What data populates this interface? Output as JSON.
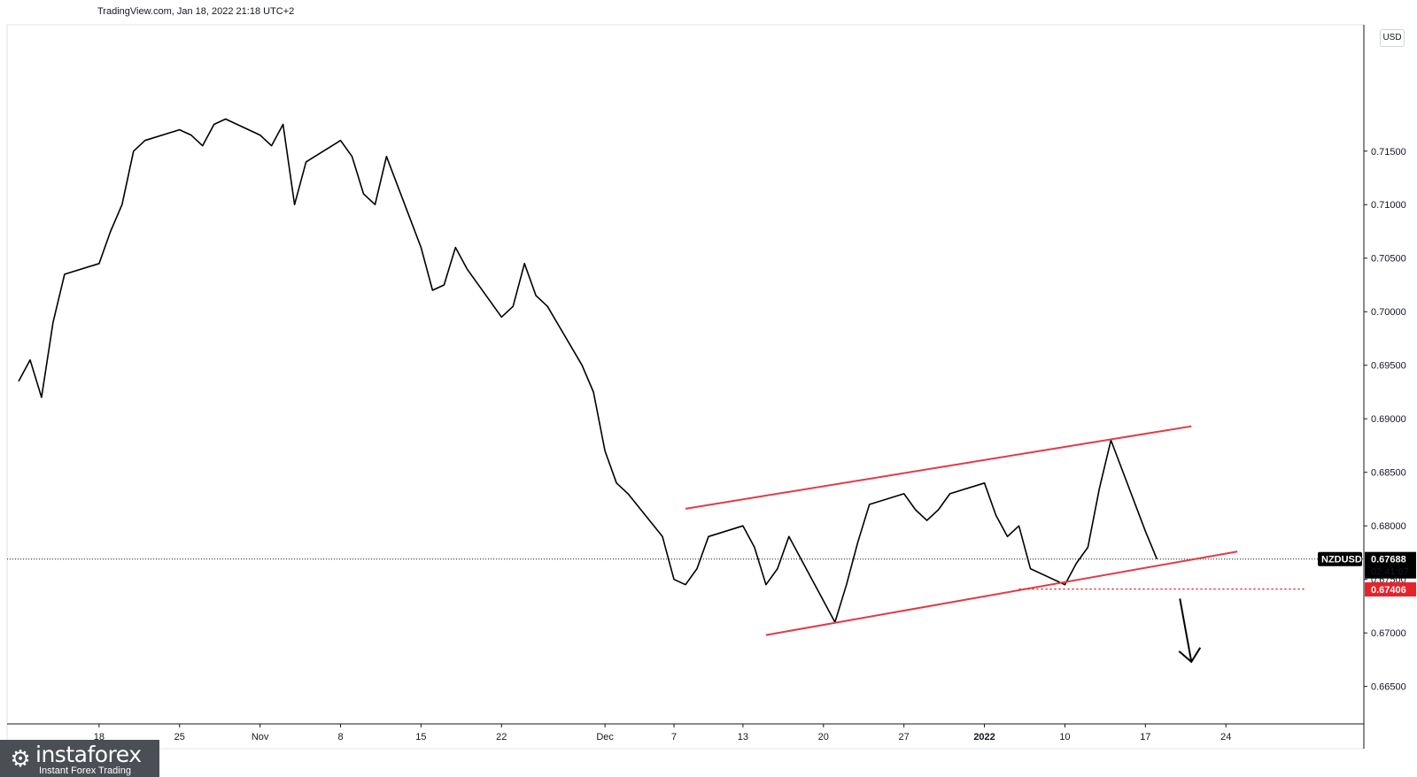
{
  "attribution": "TradingView.com, Jan 18, 2022 21:18 UTC+2",
  "currency_button": "USD",
  "brand": {
    "name": "instaforex",
    "tagline": "Instant Forex Trading"
  },
  "colors": {
    "price_line": "#000000",
    "channel": "#e53945",
    "support": "#e8222a",
    "symbol_tag": "#000000"
  },
  "chart_data": {
    "type": "line",
    "title": "",
    "symbol": "NZDUSD",
    "last_price": "0.67688",
    "countdown": "02:41:07",
    "support_level": "0.67406",
    "support_value": 0.67406,
    "ylim": [
      0.6615,
      0.7268
    ],
    "y_ticks": [
      0.715,
      0.71,
      0.705,
      0.7,
      0.695,
      0.69,
      0.685,
      0.68,
      0.675,
      0.67,
      0.665
    ],
    "y_tick_labels": [
      "0.71500",
      "0.71000",
      "0.70500",
      "0.70000",
      "0.69500",
      "0.69000",
      "0.68500",
      "0.68000",
      "0.67500",
      "0.67000",
      "0.66500"
    ],
    "x_ticks": [
      {
        "label": "18",
        "date": "2021-10-18"
      },
      {
        "label": "25",
        "date": "2021-10-25"
      },
      {
        "label": "Nov",
        "date": "2021-11-01"
      },
      {
        "label": "8",
        "date": "2021-11-08"
      },
      {
        "label": "15",
        "date": "2021-11-15"
      },
      {
        "label": "22",
        "date": "2021-11-22"
      },
      {
        "label": "Dec",
        "date": "2021-12-01"
      },
      {
        "label": "7",
        "date": "2021-12-07"
      },
      {
        "label": "13",
        "date": "2021-12-13"
      },
      {
        "label": "20",
        "date": "2021-12-20"
      },
      {
        "label": "27",
        "date": "2021-12-27"
      },
      {
        "label": "2022",
        "date": "2022-01-03"
      },
      {
        "label": "10",
        "date": "2022-01-10"
      },
      {
        "label": "17",
        "date": "2022-01-17"
      },
      {
        "label": "24",
        "date": "2022-01-24"
      }
    ],
    "series": [
      {
        "values": [
          [
            "2021-10-11",
            0.6935
          ],
          [
            "2021-10-12",
            0.6955
          ],
          [
            "2021-10-13",
            0.692
          ],
          [
            "2021-10-14",
            0.699
          ],
          [
            "2021-10-15",
            0.7035
          ],
          [
            "2021-10-18",
            0.7045
          ],
          [
            "2021-10-19",
            0.7075
          ],
          [
            "2021-10-20",
            0.71
          ],
          [
            "2021-10-21",
            0.715
          ],
          [
            "2021-10-22",
            0.716
          ],
          [
            "2021-10-25",
            0.717
          ],
          [
            "2021-10-26",
            0.7165
          ],
          [
            "2021-10-27",
            0.7155
          ],
          [
            "2021-10-28",
            0.7175
          ],
          [
            "2021-10-29",
            0.718
          ],
          [
            "2021-11-01",
            0.7165
          ],
          [
            "2021-11-02",
            0.7155
          ],
          [
            "2021-11-03",
            0.7175
          ],
          [
            "2021-11-04",
            0.71
          ],
          [
            "2021-11-05",
            0.714
          ],
          [
            "2021-11-08",
            0.716
          ],
          [
            "2021-11-09",
            0.7145
          ],
          [
            "2021-11-10",
            0.711
          ],
          [
            "2021-11-11",
            0.71
          ],
          [
            "2021-11-12",
            0.7145
          ],
          [
            "2021-11-15",
            0.706
          ],
          [
            "2021-11-16",
            0.702
          ],
          [
            "2021-11-17",
            0.7025
          ],
          [
            "2021-11-18",
            0.706
          ],
          [
            "2021-11-19",
            0.704
          ],
          [
            "2021-11-22",
            0.6995
          ],
          [
            "2021-11-23",
            0.7005
          ],
          [
            "2021-11-24",
            0.7045
          ],
          [
            "2021-11-25",
            0.7015
          ],
          [
            "2021-11-26",
            0.7005
          ],
          [
            "2021-11-29",
            0.695
          ],
          [
            "2021-11-30",
            0.6925
          ],
          [
            "2021-12-01",
            0.687
          ],
          [
            "2021-12-02",
            0.684
          ],
          [
            "2021-12-03",
            0.683
          ],
          [
            "2021-12-06",
            0.679
          ],
          [
            "2021-12-07",
            0.675
          ],
          [
            "2021-12-08",
            0.6745
          ],
          [
            "2021-12-09",
            0.676
          ],
          [
            "2021-12-10",
            0.679
          ],
          [
            "2021-12-13",
            0.68
          ],
          [
            "2021-12-14",
            0.678
          ],
          [
            "2021-12-15",
            0.6745
          ],
          [
            "2021-12-16",
            0.676
          ],
          [
            "2021-12-17",
            0.679
          ],
          [
            "2021-12-20",
            0.673
          ],
          [
            "2021-12-21",
            0.671
          ],
          [
            "2021-12-22",
            0.6745
          ],
          [
            "2021-12-23",
            0.6785
          ],
          [
            "2021-12-24",
            0.682
          ],
          [
            "2021-12-27",
            0.683
          ],
          [
            "2021-12-28",
            0.6815
          ],
          [
            "2021-12-29",
            0.6805
          ],
          [
            "2021-12-30",
            0.6815
          ],
          [
            "2021-12-31",
            0.683
          ],
          [
            "2022-01-03",
            0.684
          ],
          [
            "2022-01-04",
            0.681
          ],
          [
            "2022-01-05",
            0.679
          ],
          [
            "2022-01-06",
            0.68
          ],
          [
            "2022-01-07",
            0.676
          ],
          [
            "2022-01-10",
            0.6745
          ],
          [
            "2022-01-11",
            0.6765
          ],
          [
            "2022-01-12",
            0.678
          ],
          [
            "2022-01-13",
            0.6835
          ],
          [
            "2022-01-14",
            0.688
          ],
          [
            "2022-01-17",
            0.6795
          ],
          [
            "2022-01-18",
            0.6769
          ]
        ]
      }
    ],
    "annotations": {
      "upper_channel": [
        [
          "2021-12-08",
          0.6816
        ],
        [
          "2022-01-21",
          0.6893
        ]
      ],
      "lower_channel": [
        [
          "2021-12-15",
          0.6698
        ],
        [
          "2022-01-25",
          0.6776
        ]
      ],
      "support_line": [
        [
          "2022-01-06",
          0.6741
        ],
        [
          "2022-01-31",
          0.6741
        ]
      ],
      "arrow": [
        [
          "2022-01-20",
          0.6732
        ],
        [
          "2022-01-21",
          0.6673
        ]
      ]
    }
  }
}
